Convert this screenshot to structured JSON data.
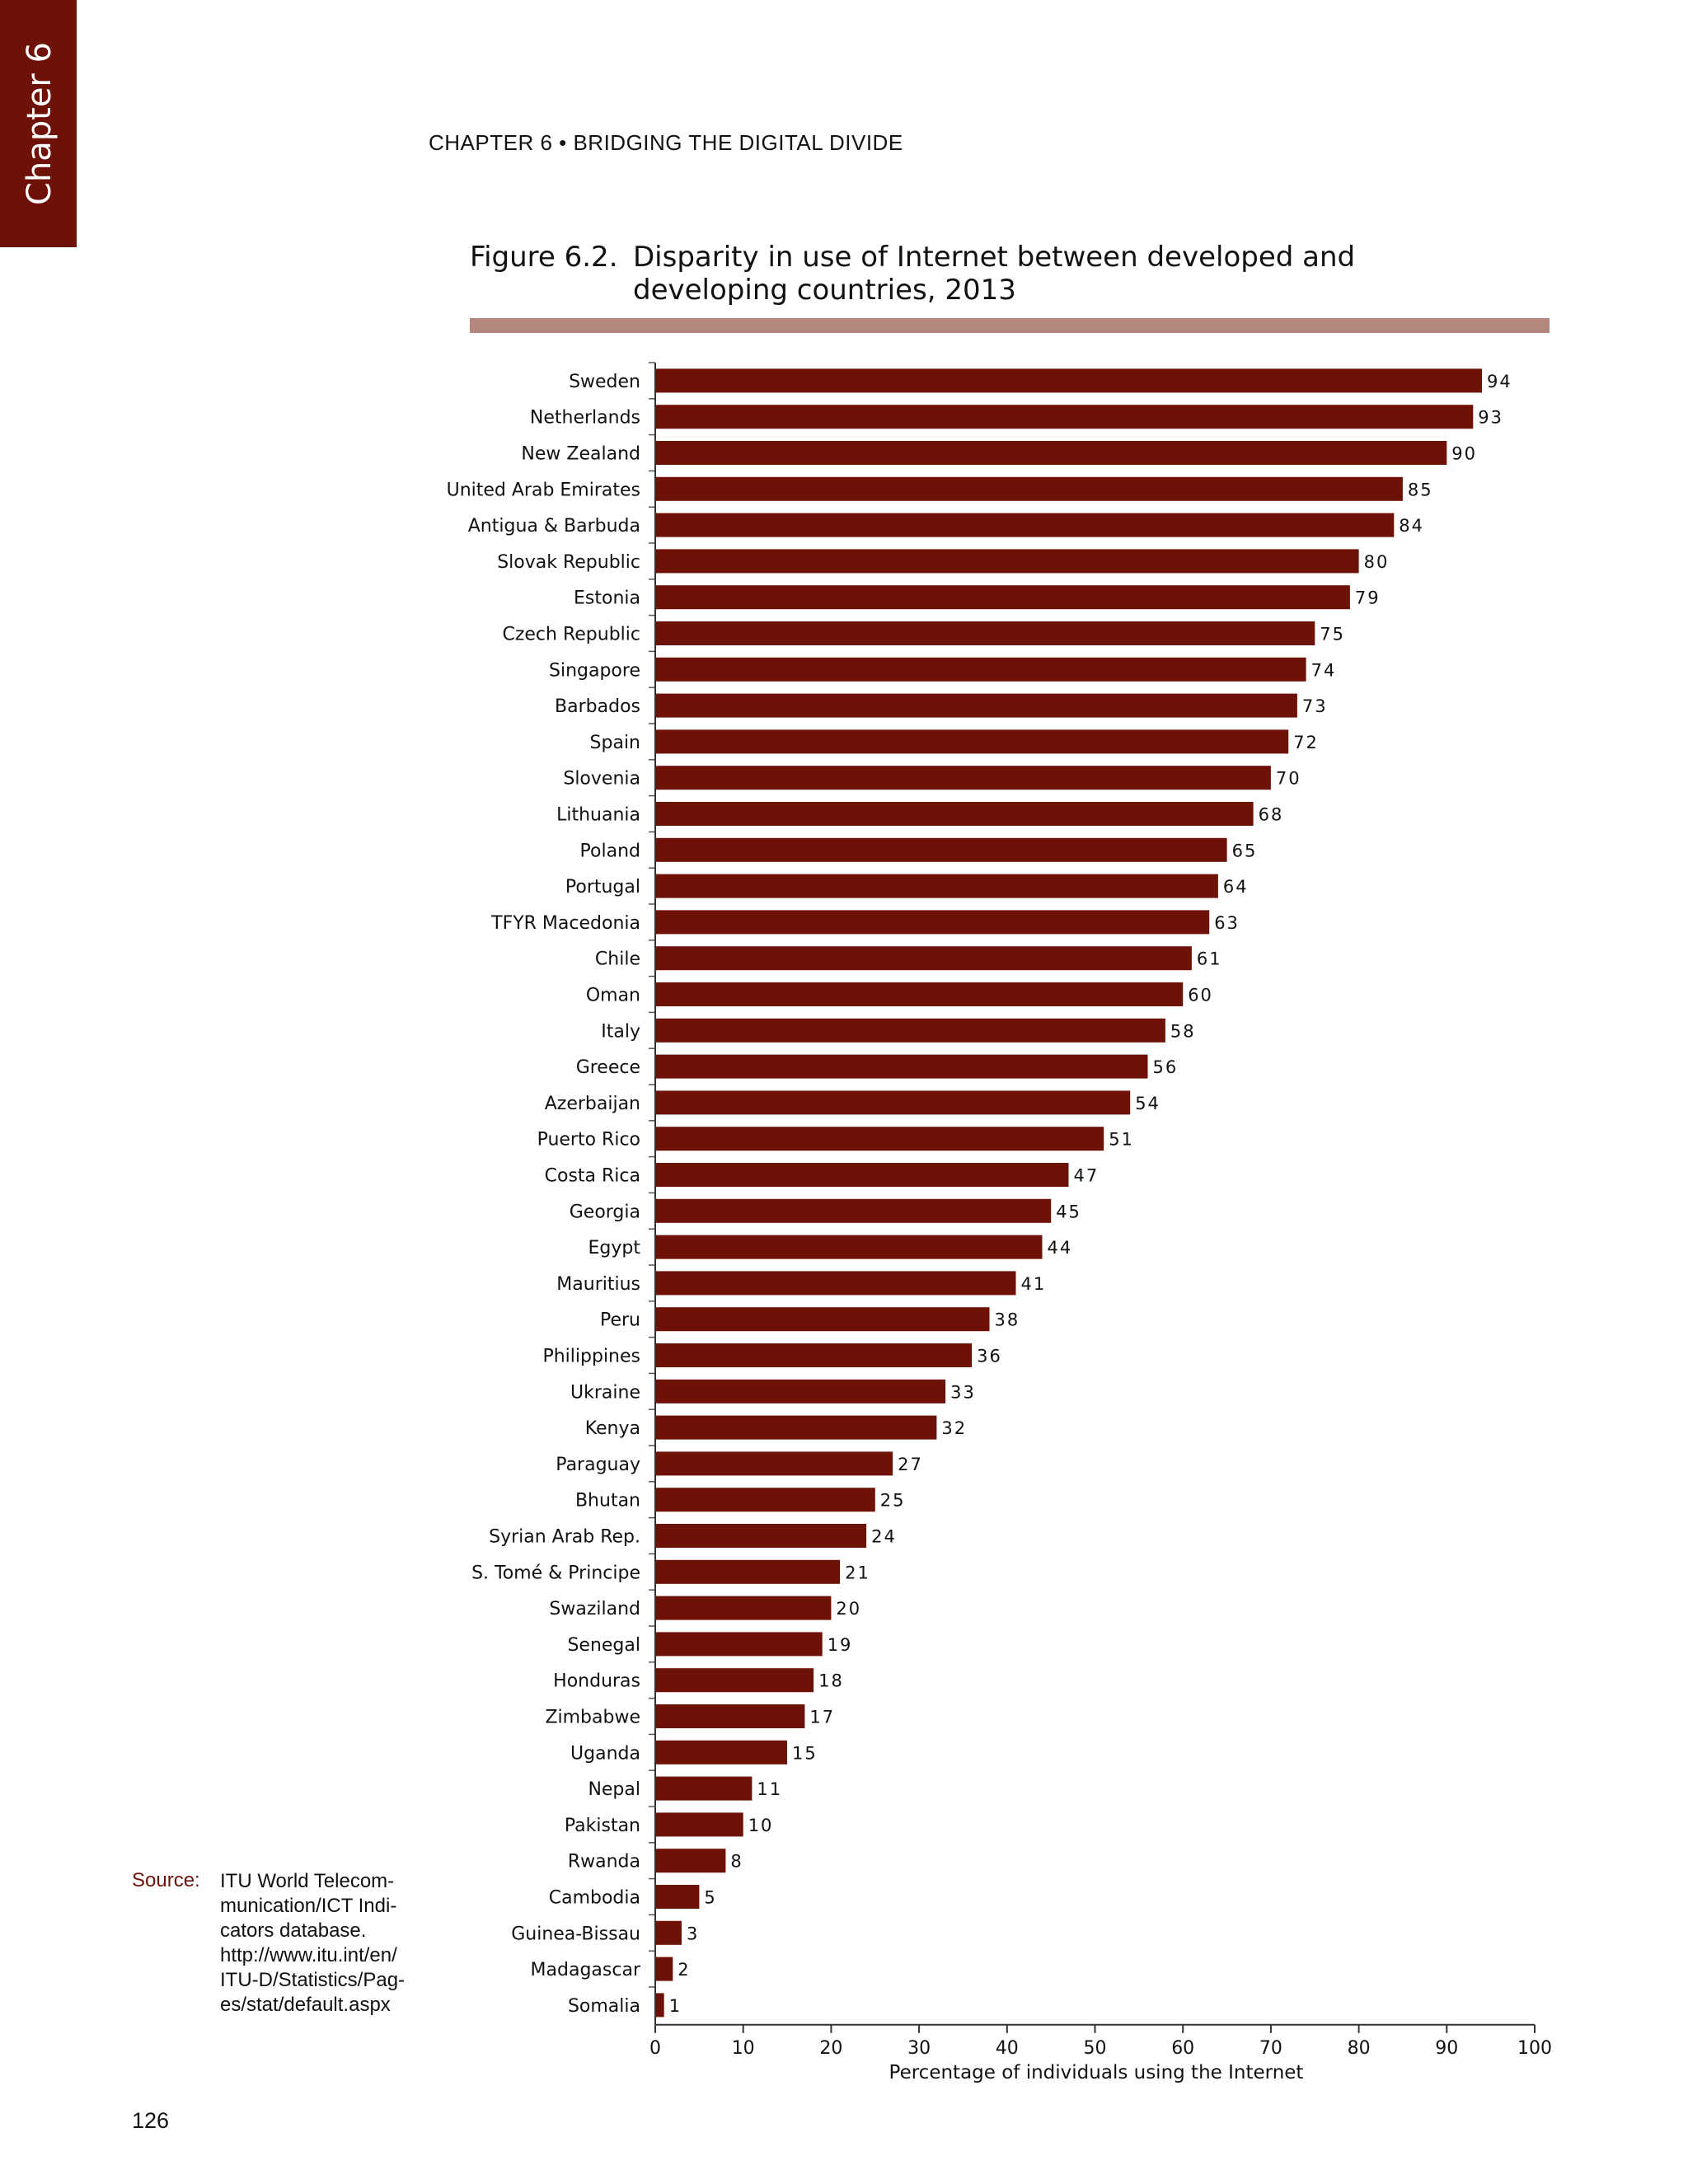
{
  "chapter_tab": "Chapter 6",
  "running_header": "CHAPTER 6 • BRIDGING THE DIGITAL DIVIDE",
  "figure": {
    "number": "Figure 6.2.",
    "title": "Disparity in use of Internet between developed and developing countries, 2013"
  },
  "colors": {
    "bar": "#6e1208",
    "accent_rule": "#b4877d",
    "chapter_tab": "#6e1208"
  },
  "chart_data": {
    "type": "bar",
    "orientation": "horizontal",
    "title": "Disparity in use of Internet between developed and developing countries, 2013",
    "xlabel": "Percentage of individuals using the Internet",
    "ylabel": "",
    "xlim": [
      0,
      100
    ],
    "xticks": [
      0,
      10,
      20,
      30,
      40,
      50,
      60,
      70,
      80,
      90,
      100
    ],
    "grid": false,
    "categories": [
      "Sweden",
      "Netherlands",
      "New Zealand",
      "United Arab Emirates",
      "Antigua & Barbuda",
      "Slovak Republic",
      "Estonia",
      "Czech Republic",
      "Singapore",
      "Barbados",
      "Spain",
      "Slovenia",
      "Lithuania",
      "Poland",
      "Portugal",
      "TFYR Macedonia",
      "Chile",
      "Oman",
      "Italy",
      "Greece",
      "Azerbaijan",
      "Puerto Rico",
      "Costa Rica",
      "Georgia",
      "Egypt",
      "Mauritius",
      "Peru",
      "Philippines",
      "Ukraine",
      "Kenya",
      "Paraguay",
      "Bhutan",
      "Syrian Arab Rep.",
      "S. Tomé & Principe",
      "Swaziland",
      "Senegal",
      "Honduras",
      "Zimbabwe",
      "Uganda",
      "Nepal",
      "Pakistan",
      "Rwanda",
      "Cambodia",
      "Guinea-Bissau",
      "Madagascar",
      "Somalia"
    ],
    "values": [
      94,
      93,
      90,
      85,
      84,
      80,
      79,
      75,
      74,
      73,
      72,
      70,
      68,
      65,
      64,
      63,
      61,
      60,
      58,
      56,
      54,
      51,
      47,
      45,
      44,
      41,
      38,
      36,
      33,
      32,
      27,
      25,
      24,
      21,
      20,
      19,
      18,
      17,
      15,
      11,
      10,
      8,
      5,
      3,
      2,
      1
    ]
  },
  "source": {
    "label": "Source:",
    "lines": [
      "ITU World Telecom-",
      "munication/ICT Indi-",
      "cators database.",
      "http://www.itu.int/en/",
      "ITU-D/Statistics/Pag-",
      "es/stat/default.aspx"
    ]
  },
  "page_number": "126"
}
